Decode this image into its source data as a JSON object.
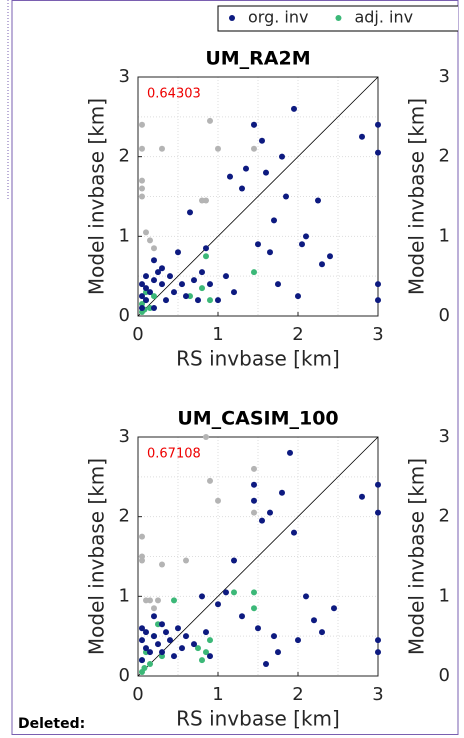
{
  "margin_text": "Deleted:",
  "chart_data": [
    {
      "type": "scatter",
      "title": "UM_RA2M",
      "annotation": "0.64303",
      "xlabel": "RS invbase [km]",
      "ylabel": "Model invbase [km]",
      "xlim": [
        0,
        3
      ],
      "ylim": [
        0,
        3
      ],
      "xticks": [
        0,
        1,
        2,
        3
      ],
      "yticks": [
        0,
        1,
        2,
        3
      ],
      "grid": true,
      "series": [
        {
          "name": "org. inv",
          "color": "#0d1a80",
          "x": [
            0.05,
            0.05,
            0.05,
            0.1,
            0.1,
            0.15,
            0.2,
            0.2,
            0.25,
            0.3,
            0.3,
            0.35,
            0.4,
            0.45,
            0.5,
            0.55,
            0.6,
            0.65,
            0.7,
            0.75,
            0.8,
            0.85,
            0.9,
            1.0,
            1.1,
            1.15,
            1.2,
            1.3,
            1.35,
            1.45,
            1.5,
            1.55,
            1.6,
            1.65,
            1.7,
            1.75,
            1.8,
            1.85,
            1.95,
            2.0,
            2.05,
            2.1,
            2.25,
            2.3,
            2.4,
            2.8,
            3.0,
            3.0,
            3.0,
            3.0,
            0.2,
            0.1
          ],
          "values": [
            0.1,
            0.25,
            0.4,
            0.5,
            0.35,
            0.3,
            0.45,
            0.7,
            0.55,
            0.4,
            0.6,
            0.2,
            0.5,
            0.3,
            0.8,
            0.4,
            0.25,
            1.3,
            0.45,
            0.2,
            0.55,
            0.85,
            0.4,
            0.2,
            0.5,
            1.75,
            0.3,
            1.6,
            1.85,
            2.4,
            0.9,
            2.2,
            1.8,
            0.8,
            1.2,
            0.4,
            2.0,
            1.5,
            2.6,
            0.25,
            0.9,
            1.0,
            1.45,
            0.65,
            0.75,
            2.25,
            2.4,
            2.05,
            0.4,
            0.2,
            0.1,
            0.2
          ]
        },
        {
          "name": "adj. inv",
          "color": "#3cb878",
          "x": [
            0.05,
            0.05,
            0.1,
            0.15,
            0.1,
            0.2,
            0.65,
            0.8,
            0.85,
            0.9,
            1.45,
            0.08
          ],
          "values": [
            0.05,
            0.15,
            0.3,
            0.1,
            0.2,
            0.25,
            0.25,
            0.35,
            0.75,
            0.2,
            0.55,
            0.08
          ]
        },
        {
          "color": "#b4b4b4",
          "x": [
            0.05,
            0.05,
            0.05,
            0.05,
            0.05,
            0.1,
            0.15,
            0.2,
            0.3,
            0.8,
            0.85,
            0.9,
            1.0,
            1.45,
            1.45
          ],
          "values": [
            2.4,
            2.1,
            1.7,
            1.6,
            1.5,
            1.05,
            0.95,
            0.85,
            2.1,
            1.45,
            1.45,
            2.45,
            2.1,
            2.4,
            2.1
          ]
        }
      ]
    },
    {
      "type": "scatter",
      "title": "UM_CASIM_100",
      "annotation": "0.67108",
      "xlabel": "RS invbase [km]",
      "ylabel": "Model invbase [km]",
      "xlim": [
        0,
        3
      ],
      "ylim": [
        0,
        3
      ],
      "xticks": [
        0,
        1,
        2,
        3
      ],
      "yticks": [
        0,
        1,
        2,
        3
      ],
      "grid": true,
      "series": [
        {
          "color": "#0d1a80",
          "x": [
            0.05,
            0.05,
            0.05,
            0.1,
            0.1,
            0.15,
            0.2,
            0.2,
            0.25,
            0.3,
            0.3,
            0.35,
            0.4,
            0.45,
            0.5,
            0.55,
            0.6,
            0.7,
            0.8,
            0.85,
            0.9,
            1.0,
            1.1,
            1.2,
            1.3,
            1.45,
            1.45,
            1.5,
            1.55,
            1.6,
            1.65,
            1.7,
            1.75,
            1.8,
            1.9,
            1.95,
            2.0,
            2.1,
            2.2,
            2.3,
            2.45,
            2.8,
            3.0,
            3.0,
            3.0,
            3.0
          ],
          "values": [
            0.2,
            0.45,
            0.6,
            0.35,
            0.55,
            0.3,
            0.5,
            0.75,
            0.4,
            0.65,
            0.3,
            0.55,
            0.45,
            0.25,
            0.6,
            0.35,
            0.5,
            0.4,
            1.0,
            0.55,
            0.25,
            0.9,
            1.05,
            1.45,
            0.75,
            2.4,
            2.2,
            0.6,
            1.95,
            0.15,
            2.05,
            0.5,
            0.3,
            2.3,
            2.8,
            1.8,
            0.45,
            1.0,
            0.7,
            0.55,
            0.85,
            2.25,
            2.4,
            2.05,
            0.45,
            0.3
          ]
        },
        {
          "color": "#3cb878",
          "x": [
            0.05,
            0.05,
            0.1,
            0.15,
            0.2,
            0.25,
            0.3,
            0.45,
            0.75,
            0.8,
            0.85,
            0.9,
            1.2,
            1.45,
            1.45,
            0.08
          ],
          "values": [
            0.05,
            0.2,
            0.3,
            0.15,
            0.5,
            0.65,
            0.25,
            0.95,
            0.35,
            0.2,
            0.3,
            0.45,
            1.05,
            1.05,
            0.85,
            0.1
          ]
        },
        {
          "color": "#b4b4b4",
          "x": [
            0.05,
            0.05,
            0.05,
            0.1,
            0.15,
            0.2,
            0.25,
            0.3,
            0.6,
            0.85,
            0.9,
            1.0,
            1.45,
            1.45
          ],
          "values": [
            1.5,
            1.75,
            1.45,
            0.95,
            0.95,
            0.85,
            0.95,
            1.4,
            1.45,
            3.0,
            2.45,
            2.2,
            2.6,
            2.05
          ]
        }
      ]
    },
    {
      "type": "scatter",
      "ylabel": "Model invbase [km]",
      "ylim": [
        0,
        3
      ],
      "yticks": [
        0,
        1,
        2,
        3
      ]
    },
    {
      "type": "scatter",
      "ylabel": "Model invbase [km]",
      "ylim": [
        0,
        3
      ],
      "yticks": [
        0,
        1,
        2,
        3
      ]
    }
  ]
}
